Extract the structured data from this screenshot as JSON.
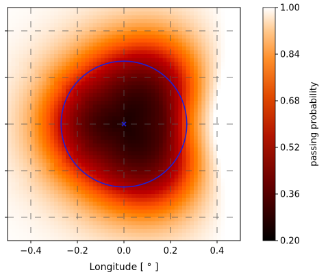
{
  "chart_data": {
    "type": "heatmap",
    "title": "",
    "xlabel": "Longitude [$^\\circ$]",
    "xlabel_display": "Longitude [ ° ]",
    "ylabel": "",
    "xlim": [
      -0.5,
      0.5
    ],
    "ylim": [
      -0.5,
      0.5
    ],
    "x_ticks": [
      -0.4,
      -0.2,
      0.0,
      0.2,
      0.4
    ],
    "x_tick_labels": [
      "−0.4",
      "−0.2",
      "0.0",
      "0.2",
      "0.4"
    ],
    "y_tick_labels": [
      "",
      "",
      "",
      "",
      ""
    ],
    "colormap": "gist_heat",
    "colorbar": {
      "label": "passing probability",
      "min": 0.2,
      "max": 1.0,
      "ticks": [
        0.2,
        0.36,
        0.52,
        0.68,
        0.84,
        1.0
      ],
      "tick_labels": [
        "0.20",
        "0.36",
        "0.52",
        "0.68",
        "0.84",
        "1.00"
      ]
    },
    "grid": "dashed",
    "overlay": {
      "circle_center": [
        0.0,
        0.0
      ],
      "circle_radius": 0.27,
      "center_marker": [
        0.0,
        0.0
      ],
      "color": "#1f1fd6"
    },
    "field_description_values": {
      "min_probability": 0.24,
      "max_probability": 1.0
    }
  }
}
